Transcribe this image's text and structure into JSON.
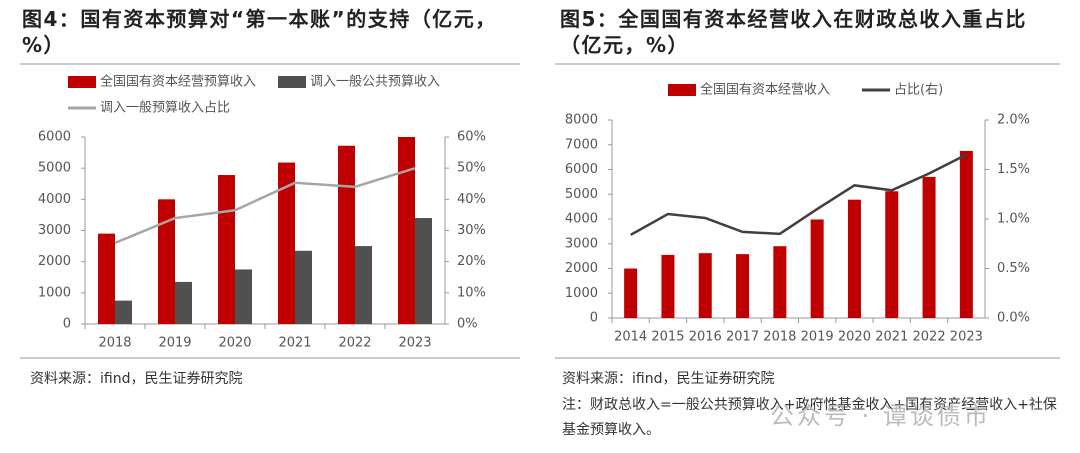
{
  "chart_data": [
    {
      "type": "bar",
      "title": "图4：国有资本预算对“第一本账”的支持（亿元，%）",
      "source": "资料来源：ifind，民生证券研究院",
      "categories": [
        "2018",
        "2019",
        "2020",
        "2021",
        "2022",
        "2023"
      ],
      "series": [
        {
          "name": "全国国有资本经营预算收入",
          "color": "#c00000",
          "values": [
            2900,
            4000,
            4780,
            5180,
            5720,
            6000
          ]
        },
        {
          "name": "调入一般公共预算收入",
          "color": "#505050",
          "values": [
            750,
            1350,
            1750,
            2350,
            2500,
            3400
          ]
        },
        {
          "name": "调入一般预算收入占比",
          "color": "#a6a6a6",
          "type": "line",
          "axis": "y2",
          "values": [
            26,
            34,
            36.5,
            45.3,
            44,
            50
          ]
        }
      ],
      "ylim": [
        0,
        6000
      ],
      "yticks": [
        0,
        1000,
        2000,
        3000,
        4000,
        5000,
        6000
      ],
      "y2lim": [
        0,
        60
      ],
      "y2ticks": [
        {
          "value": 0,
          "label": "0%"
        },
        {
          "value": 10,
          "label": "10%"
        },
        {
          "value": 20,
          "label": "20%"
        },
        {
          "value": 30,
          "label": "30%"
        },
        {
          "value": 40,
          "label": "40%"
        },
        {
          "value": 50,
          "label": "50%"
        },
        {
          "value": 60,
          "label": "60%"
        }
      ]
    },
    {
      "type": "bar",
      "title": "图5：全国国有资本经营收入在财政总收入重占比（亿元，%）",
      "source": "资料来源：ifind，民生证券研究院",
      "note": "注：财政总收入=一般公共预算收入+政府性基金收入+国有资产经营收入+社保基金预算收入。",
      "categories": [
        "2014",
        "2015",
        "2016",
        "2017",
        "2018",
        "2019",
        "2020",
        "2021",
        "2022",
        "2023"
      ],
      "series": [
        {
          "name": "全国国有资本经营收入",
          "color": "#c00000",
          "values": [
            2000,
            2550,
            2620,
            2580,
            2900,
            3980,
            4780,
            5120,
            5700,
            6750
          ]
        },
        {
          "name": "占比(右)",
          "color": "#404040",
          "type": "line",
          "axis": "y2",
          "values": [
            0.84,
            1.05,
            1.01,
            0.87,
            0.85,
            1.1,
            1.34,
            1.29,
            1.46,
            1.65
          ]
        }
      ],
      "ylim": [
        0,
        8000
      ],
      "yticks": [
        0,
        1000,
        2000,
        3000,
        4000,
        5000,
        6000,
        7000,
        8000
      ],
      "y2lim": [
        0,
        2
      ],
      "y2ticks": [
        {
          "value": 0,
          "label": "0.0%"
        },
        {
          "value": 0.5,
          "label": "0.5%"
        },
        {
          "value": 1,
          "label": "1.0%"
        },
        {
          "value": 1.5,
          "label": "1.5%"
        },
        {
          "value": 2,
          "label": "2.0%"
        }
      ]
    }
  ],
  "watermark": "公众号 · 谭谈债市"
}
